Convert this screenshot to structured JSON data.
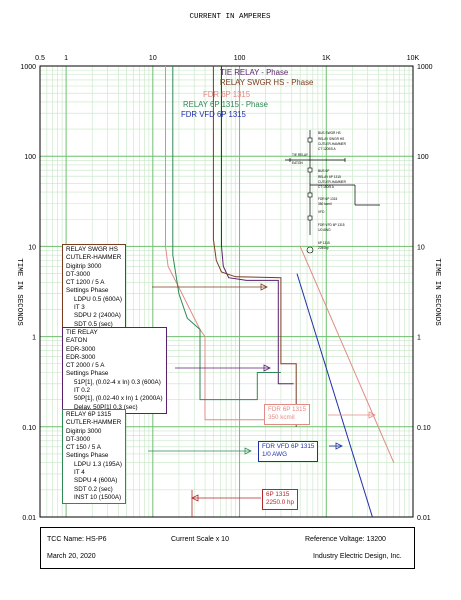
{
  "title_top": "CURRENT IN AMPERES",
  "ylabel": "TIME IN SECONDS",
  "colors": {
    "grid_major": "#6fbf6f",
    "grid_minor": "#c4e6c4",
    "tie_relay": "#5b1f6e",
    "swgr_relay": "#7b3b1e",
    "fdr_6p": "#e28b84",
    "relay_6p": "#2e8a55",
    "vfd": "#1f2fa8",
    "motor": "#b02828"
  },
  "legend": [
    {
      "label": "TIE RELAY - Phase",
      "color": "#5b1f6e"
    },
    {
      "label": "RELAY SWGR HS - Phase",
      "color": "#7b3b1e"
    },
    {
      "label": "FDR 6P 1315",
      "color": "#e28b84"
    },
    {
      "label": "RELAY 6P 1315 - Phase",
      "color": "#2e8a55"
    },
    {
      "label": "FDR VFD 6P 1315",
      "color": "#1f2fa8"
    }
  ],
  "chart_data": {
    "type": "line",
    "x_scale": "log",
    "y_scale": "log",
    "xlim": [
      0.5,
      10000
    ],
    "ylim": [
      0.01,
      1000
    ],
    "x_ticks": [
      "0.5",
      "1",
      "10",
      "100",
      "1K",
      "10K"
    ],
    "y_ticks": [
      "0.01",
      "0.10",
      "1",
      "10",
      "100",
      "1000"
    ],
    "xlabel": "CURRENT IN AMPERES",
    "ylabel": "TIME IN SECONDS",
    "grid": true,
    "series": [
      {
        "name": "TIE RELAY - Phase",
        "points": [
          [
            62,
            1000
          ],
          [
            62,
            10
          ],
          [
            65,
            6
          ],
          [
            75,
            4.5
          ],
          [
            120,
            4.2
          ],
          [
            280,
            4.2
          ],
          [
            280,
            0.3
          ],
          [
            420,
            0.3
          ]
        ]
      },
      {
        "name": "RELAY SWGR HS - Phase",
        "points": [
          [
            50,
            1000
          ],
          [
            50,
            12
          ],
          [
            54,
            7
          ],
          [
            62,
            5.2
          ],
          [
            90,
            4.6
          ],
          [
            300,
            4.5
          ],
          [
            300,
            0.5
          ],
          [
            450,
            0.5
          ],
          [
            450,
            0.1
          ]
        ]
      },
      {
        "name": "FDR 6P 1315",
        "points": [
          [
            14,
            1000
          ],
          [
            14,
            10
          ],
          [
            15,
            6
          ],
          [
            20,
            3.5
          ],
          [
            35,
            1.2
          ],
          [
            40,
            1
          ],
          [
            40,
            0.12
          ],
          [
            360,
            0.12
          ]
        ]
      },
      {
        "name": "RELAY 6P 1315 - Phase",
        "points": [
          [
            17,
            1000
          ],
          [
            17,
            8
          ],
          [
            20,
            3
          ],
          [
            25,
            1.6
          ],
          [
            35,
            1.2
          ],
          [
            35,
            0.2
          ],
          [
            160,
            0.2
          ],
          [
            160,
            0.4
          ],
          [
            300,
            0.4
          ]
        ]
      },
      {
        "name": "FDR VFD 6P 1315",
        "points": [
          [
            460,
            5
          ],
          [
            3400,
            0.01
          ]
        ]
      },
      {
        "name": "FDR 6P 1315 350 kcmil",
        "points": [
          [
            500,
            10
          ],
          [
            6000,
            0.04
          ]
        ]
      }
    ]
  },
  "notes": {
    "swgr": [
      "RELAY SWGR HS",
      "CUTLER-HAMMER",
      "Digitrip 3000",
      "DT-3000",
      "CT 1200 / 5 A",
      "Settings Phase",
      "LDPU 0.5 (600A)",
      "IT 3",
      "SDPU 2 (2400A)",
      "SDT 0.5 (sec)"
    ],
    "tie": [
      "TIE RELAY",
      "EATON",
      "EDR-3000",
      "EDR-3000",
      "CT 2000 / 5 A",
      "Settings Phase",
      "51P[1], (0.02-4 x In) 0.3 (600A)",
      "IT 0.2",
      "50P[1], (0.02-40 x In) 1 (2000A)",
      "Delay, 50P[1] 0.3 (sec)"
    ],
    "relay6p": [
      "RELAY 6P 1315",
      "CUTLER-HAMMER",
      "Digitrip 3000",
      "DT-3000",
      "CT 150 / 5 A",
      "Settings Phase",
      "LDPU 1.3 (195A)",
      "IT 4",
      "SDPU 4 (600A)",
      "SDT 0.2 (sec)",
      "INST 10 (1500A)"
    ],
    "fdr6p": [
      "FDR 6P 1315",
      "350 kcmil"
    ],
    "vfd": [
      "FDR VFD 6P 1315",
      "1/0 AWG"
    ],
    "motor": [
      "6P 1315",
      "2250.0 hp"
    ]
  },
  "oneline": [
    "BUS SWGR HS",
    "RELAY SWGR HS",
    "CUTLER-HAMMER",
    "CT 1200/5 A",
    "TIE RELAY",
    "EATON",
    "BUS 6P",
    "RELAY 6P 1315",
    "CUTLER-HAMMER",
    "CT 150/5 A",
    "FDR 6P 1315",
    "350 kcmil",
    "VFD",
    "FDR VFD 6P 1315",
    "1/0 AWG",
    "6P 1315",
    "2250hp"
  ],
  "footer": {
    "tcc_name": "TCC Name:  HS-P6",
    "scale": "Current Scale  x 10",
    "ref_voltage": "Reference Voltage: 13200",
    "date": "March 20, 2020",
    "company": "Industry Electric Design,  Inc."
  }
}
